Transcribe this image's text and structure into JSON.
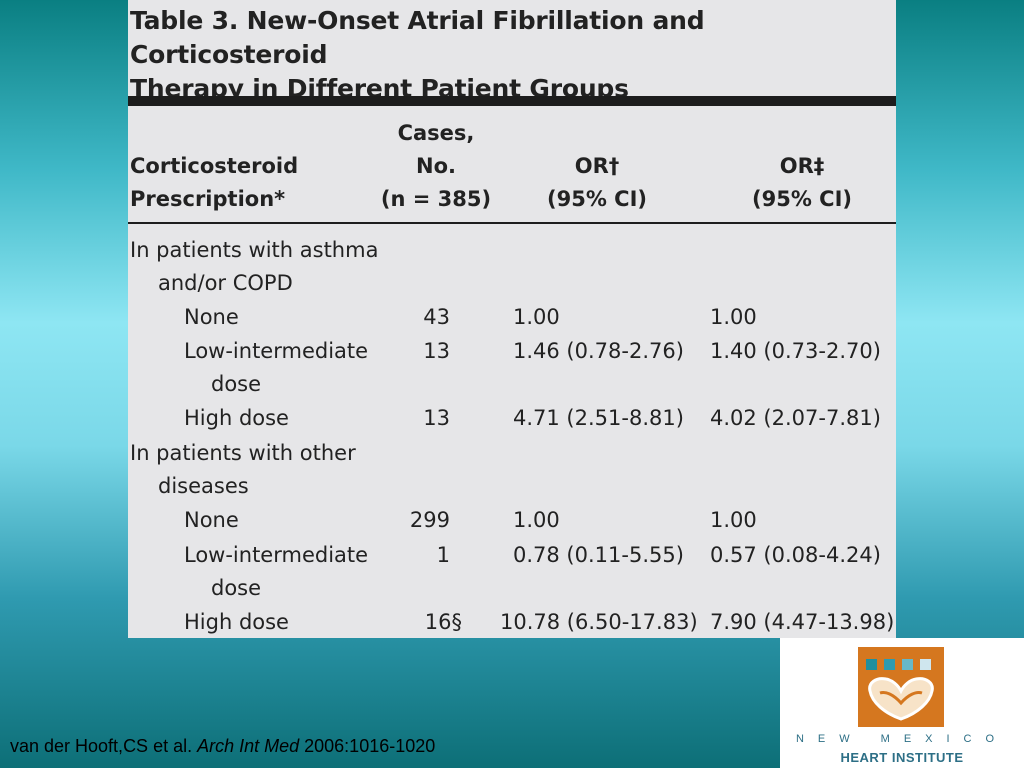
{
  "table": {
    "title_line1": "Table 3. New-Onset Atrial Fibrillation and Corticosteroid",
    "title_line2": "Therapy in Different Patient Groups",
    "headers": {
      "col1_line1": "Corticosteroid",
      "col1_line2": "Prescription*",
      "col2_line1": "Cases,",
      "col2_line2": "No.",
      "col2_line3": "(n = 385)",
      "col3_line1": "OR†",
      "col3_line2": "(95% CI)",
      "col4_line1": "OR‡",
      "col4_line2": "(95% CI)"
    },
    "group1": {
      "label_line1": "In patients with asthma",
      "label_line2": "and/or COPD"
    },
    "group2": {
      "label_line1": "In patients with other",
      "label_line2": "diseases"
    },
    "rows": [
      {
        "label_line1": "None",
        "label_line2": "",
        "cases": "43",
        "or1": "1.00",
        "or2": "1.00"
      },
      {
        "label_line1": "Low-intermediate",
        "label_line2": "dose",
        "cases": "13",
        "or1": "1.46 (0.78-2.76)",
        "or2": "1.40 (0.73-2.70)"
      },
      {
        "label_line1": "High dose",
        "label_line2": "",
        "cases": "13",
        "or1": "4.71 (2.51-8.81)",
        "or2": "4.02 (2.07-7.81)"
      },
      {
        "label_line1": "None",
        "label_line2": "",
        "cases": "299",
        "or1": "1.00",
        "or2": "1.00"
      },
      {
        "label_line1": "Low-intermediate",
        "label_line2": "dose",
        "cases": "1",
        "or1": "0.78 (0.11-5.55)",
        "or2": "0.57 (0.08-4.24)"
      },
      {
        "label_line1": "High dose",
        "label_line2": "",
        "cases": "16§",
        "or1": "10.78 (6.50-17.83)",
        "or2": "7.90 (4.47-13.98)"
      }
    ]
  },
  "citation": {
    "authors": "van der Hooft,CS  et al. ",
    "journal": "Arch Int Med",
    "details": " 2006:1016-1020"
  },
  "logo": {
    "line1": "NEW MEXICO",
    "line2": "HEART INSTITUTE",
    "icon": "hands-heart-icon",
    "colors": {
      "orange": "#d5771f",
      "teal": "#2d6f86"
    }
  }
}
